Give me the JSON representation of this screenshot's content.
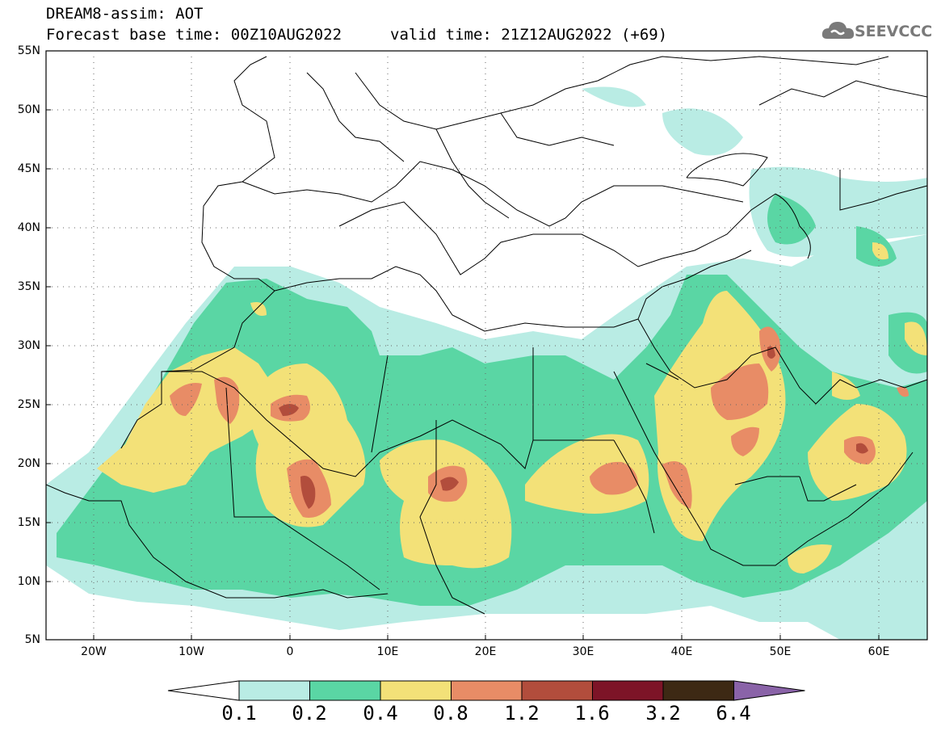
{
  "header": {
    "title_line1": "DREAM8-assim: AOT",
    "title_line2": "Forecast base time: 00Z10AUG2022",
    "valid_time": "valid time: 21Z12AUG2022 (+69)",
    "logo_text": "SEEVCCC"
  },
  "axes": {
    "lat_labels": [
      "55N",
      "50N",
      "45N",
      "40N",
      "35N",
      "30N",
      "25N",
      "20N",
      "15N",
      "10N",
      "5N"
    ],
    "lon_labels": [
      "20W",
      "10W",
      "0",
      "10E",
      "20E",
      "30E",
      "40E",
      "50E",
      "60E"
    ]
  },
  "colorbar": {
    "levels": [
      "0.1",
      "0.2",
      "0.4",
      "0.8",
      "1.2",
      "1.6",
      "3.2",
      "6.4"
    ],
    "colors": [
      "#b9ece4",
      "#5ad6a4",
      "#f3e178",
      "#e88c66",
      "#b24d3c",
      "#7d1427",
      "#3d2914",
      "#8a63a8"
    ]
  }
}
